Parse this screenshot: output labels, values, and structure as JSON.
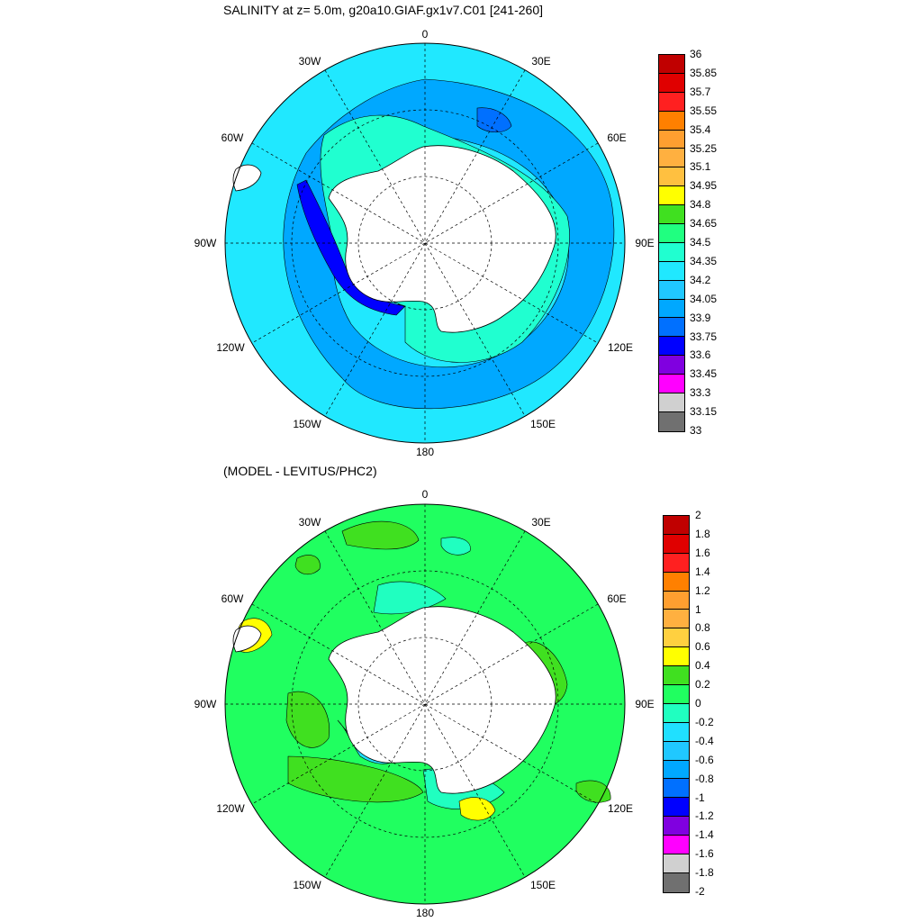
{
  "titles": {
    "top": "SALINITY at z=   5.0m, g20a10.GIAF.gx1v7.C01 [241-260]",
    "bottom": "(MODEL - LEVITUS/PHC2)"
  },
  "lon_labels": [
    "0",
    "30E",
    "60E",
    "90E",
    "120E",
    "150E",
    "180",
    "150W",
    "120W",
    "90W",
    "60W",
    "30W"
  ],
  "colorbar_top": {
    "labels": [
      "36",
      "35.85",
      "35.7",
      "35.55",
      "35.4",
      "35.25",
      "35.1",
      "34.95",
      "34.8",
      "34.65",
      "34.5",
      "34.35",
      "34.2",
      "34.05",
      "33.9",
      "33.75",
      "33.6",
      "33.45",
      "33.3",
      "33.15",
      "33"
    ],
    "colors": [
      "#c00000",
      "#e00000",
      "#ff2020",
      "#ff8000",
      "#ff9f30",
      "#ffb040",
      "#ffc040",
      "#ffff00",
      "#40e020",
      "#20ff80",
      "#20ffd0",
      "#20e8ff",
      "#20c8ff",
      "#00a8ff",
      "#0070ff",
      "#0000ff",
      "#8000e0",
      "#ff00ff",
      "#d0d0d0",
      "#707070"
    ]
  },
  "colorbar_bottom": {
    "labels": [
      "2",
      "1.8",
      "1.6",
      "1.4",
      "1.2",
      "1",
      "0.8",
      "0.6",
      "0.4",
      "0.2",
      "0",
      "-0.2",
      "-0.4",
      "-0.6",
      "-0.8",
      "-1",
      "-1.2",
      "-1.4",
      "-1.6",
      "-1.8",
      "-2"
    ],
    "colors": [
      "#c00000",
      "#e00000",
      "#ff2020",
      "#ff8000",
      "#ff9f30",
      "#ffb040",
      "#ffd040",
      "#ffff00",
      "#40e020",
      "#20ff60",
      "#20ffc0",
      "#20e0ff",
      "#20c8ff",
      "#00a8ff",
      "#0070ff",
      "#0000ff",
      "#8000e0",
      "#ff00ff",
      "#d0d0d0",
      "#707070"
    ]
  },
  "colors": {
    "top_background": "#20e8ff",
    "top_ring": "#00a8ff",
    "top_inner": "#20ffd0",
    "top_coast": "#0000ff",
    "bottom_background": "#20ff60",
    "bottom_patch": "#40e020",
    "bottom_neg": "#20ffc0",
    "land": "#ffffff"
  }
}
